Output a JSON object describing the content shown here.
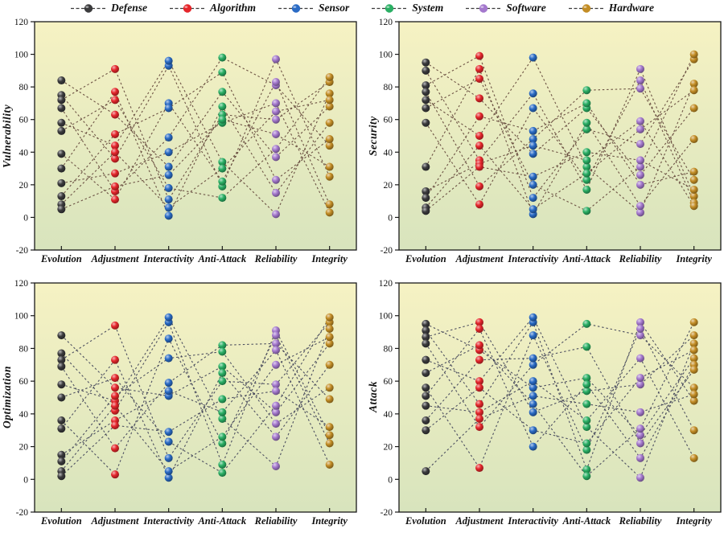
{
  "legend": {
    "items": [
      {
        "label": "Defense",
        "color": "#3b3b3d"
      },
      {
        "label": "Algorithm",
        "color": "#e5262b"
      },
      {
        "label": "Sensor",
        "color": "#2a6bc5"
      },
      {
        "label": "System",
        "color": "#2aaf64"
      },
      {
        "label": "Software",
        "color": "#a478cd"
      },
      {
        "label": "Hardware",
        "color": "#c38d25"
      }
    ]
  },
  "style": {
    "plot_bg_top": "#f6f2c3",
    "plot_bg_bottom": "#d8e4bd",
    "axis_color": "#1a1a1a"
  },
  "chart_data": [
    {
      "type": "line",
      "title": "Vulnerability",
      "ylabel": "Vulnerability",
      "categories": [
        "Evolution",
        "Adjustment",
        "Interactivity",
        "Anti-Attack",
        "Reliability",
        "Integrity"
      ],
      "ylim": [
        -20,
        120
      ],
      "yticks": [
        -20,
        0,
        20,
        40,
        60,
        80,
        100,
        120
      ],
      "grid": false,
      "legend_position": "top",
      "line_color": "#5f4136",
      "series": [
        {
          "values": [
            84,
            63,
            31,
            77,
            37,
            68
          ]
        },
        {
          "values": [
            75,
            36,
            93,
            19,
            97,
            25
          ]
        },
        {
          "values": [
            72,
            91,
            11,
            63,
            60,
            83
          ]
        },
        {
          "values": [
            67,
            16,
            49,
            98,
            81,
            44
          ]
        },
        {
          "values": [
            58,
            44,
            96,
            34,
            2,
            76
          ]
        },
        {
          "values": [
            53,
            72,
            18,
            12,
            42,
            86
          ]
        },
        {
          "values": [
            39,
            11,
            70,
            22,
            83,
            8
          ]
        },
        {
          "values": [
            30,
            77,
            1,
            68,
            15,
            58
          ]
        },
        {
          "values": [
            21,
            27,
            40,
            58,
            70,
            3
          ]
        },
        {
          "values": [
            13,
            51,
            67,
            89,
            23,
            48
          ]
        },
        {
          "values": [
            8,
            40,
            6,
            30,
            65,
            72
          ]
        },
        {
          "values": [
            5,
            19,
            26,
            60,
            51,
            31
          ]
        }
      ]
    },
    {
      "type": "line",
      "title": "Security",
      "ylabel": "Security",
      "categories": [
        "Evolution",
        "Adjustment",
        "Interactivity",
        "Anti-Attack",
        "Reliability",
        "Integrity"
      ],
      "ylim": [
        -20,
        120
      ],
      "yticks": [
        -20,
        0,
        20,
        40,
        60,
        80,
        100,
        120
      ],
      "grid": false,
      "legend_position": "top",
      "line_color": "#5f4136",
      "series": [
        {
          "values": [
            95,
            73,
            39,
            67,
            26,
            67
          ]
        },
        {
          "values": [
            90,
            35,
            76,
            17,
            91,
            13
          ]
        },
        {
          "values": [
            81,
            99,
            12,
            54,
            45,
            97
          ]
        },
        {
          "values": [
            77,
            19,
            48,
            78,
            79,
            23
          ]
        },
        {
          "values": [
            72,
            50,
            98,
            31,
            3,
            82
          ]
        },
        {
          "values": [
            67,
            85,
            20,
            4,
            31,
            100
          ]
        },
        {
          "values": [
            58,
            8,
            67,
            23,
            84,
            9
          ]
        },
        {
          "values": [
            31,
            91,
            2,
            58,
            7,
            48
          ]
        },
        {
          "values": [
            16,
            33,
            44,
            35,
            59,
            7
          ]
        },
        {
          "values": [
            12,
            62,
            53,
            70,
            20,
            28
          ]
        },
        {
          "values": [
            6,
            44,
            5,
            27,
            54,
            78
          ]
        },
        {
          "values": [
            4,
            31,
            25,
            40,
            35,
            17
          ]
        }
      ]
    },
    {
      "type": "line",
      "title": "Optimization",
      "ylabel": "Optimization",
      "categories": [
        "Evolution",
        "Adjustment",
        "Interactivity",
        "Anti-Attack",
        "Reliability",
        "Integrity"
      ],
      "ylim": [
        -20,
        120
      ],
      "yticks": [
        -20,
        0,
        20,
        40,
        60,
        80,
        100,
        120
      ],
      "grid": false,
      "legend_position": "top",
      "line_color": "#3d3f56",
      "series": [
        {
          "values": [
            88,
            56,
            51,
            69,
            41,
            83
          ]
        },
        {
          "values": [
            77,
            42,
            96,
            9,
            91,
            27
          ]
        },
        {
          "values": [
            73,
            94,
            13,
            60,
            58,
            96
          ]
        },
        {
          "values": [
            69,
            19,
            59,
            82,
            83,
            49
          ]
        },
        {
          "values": [
            58,
            48,
            99,
            37,
            8,
            92
          ]
        },
        {
          "values": [
            50,
            62,
            23,
            4,
            45,
            99
          ]
        },
        {
          "values": [
            36,
            3,
            86,
            22,
            88,
            22
          ]
        },
        {
          "values": [
            31,
            73,
            1,
            65,
            26,
            70
          ]
        },
        {
          "values": [
            15,
            36,
            54,
            41,
            79,
            9
          ]
        },
        {
          "values": [
            11,
            51,
            74,
            78,
            34,
            56
          ]
        },
        {
          "values": [
            5,
            45,
            5,
            26,
            70,
            87
          ]
        },
        {
          "values": [
            2,
            33,
            29,
            49,
            54,
            32
          ]
        }
      ]
    },
    {
      "type": "line",
      "title": "Attack",
      "ylabel": "Attack",
      "categories": [
        "Evolution",
        "Adjustment",
        "Interactivity",
        "Anti-Attack",
        "Reliability",
        "Integrity"
      ],
      "ylim": [
        -20,
        120
      ],
      "yticks": [
        -20,
        0,
        20,
        40,
        60,
        80,
        100,
        120
      ],
      "grid": false,
      "legend_position": "top",
      "line_color": "#3d3f56",
      "series": [
        {
          "values": [
            95,
            79,
            56,
            62,
            27,
            74
          ]
        },
        {
          "values": [
            91,
            46,
            96,
            6,
            96,
            48
          ]
        },
        {
          "values": [
            87,
            96,
            41,
            54,
            58,
            88
          ]
        },
        {
          "values": [
            83,
            32,
            70,
            95,
            88,
            56
          ]
        },
        {
          "values": [
            73,
            60,
            99,
            32,
            1,
            83
          ]
        },
        {
          "values": [
            65,
            82,
            46,
            2,
            31,
            96
          ]
        },
        {
          "values": [
            56,
            7,
            88,
            18,
            92,
            30
          ]
        },
        {
          "values": [
            51,
            92,
            20,
            58,
            13,
            70
          ]
        },
        {
          "values": [
            45,
            41,
            60,
            36,
            74,
            13
          ]
        },
        {
          "values": [
            36,
            73,
            74,
            81,
            22,
            67
          ]
        },
        {
          "values": [
            30,
            56,
            30,
            22,
            62,
            79
          ]
        },
        {
          "values": [
            5,
            37,
            51,
            46,
            41,
            52
          ]
        }
      ]
    }
  ]
}
